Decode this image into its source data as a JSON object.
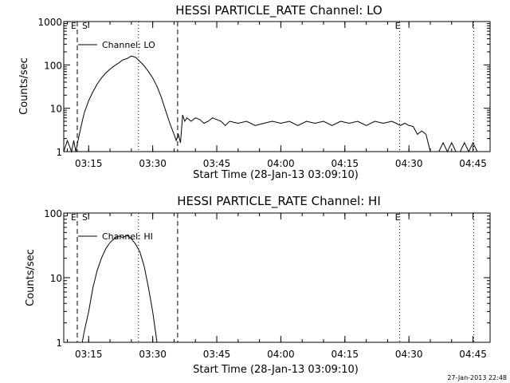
{
  "chart_data": [
    {
      "type": "line",
      "title": "HESSI PARTICLE_RATE Channel: LO",
      "xlabel": "Start Time (28-Jan-13 03:09:10)",
      "ylabel": "Counts/sec",
      "y_scale": "log",
      "ylim": [
        1,
        1000
      ],
      "xlim": [
        "03:09:10",
        "04:49:00"
      ],
      "x_ticks": [
        "03:15",
        "03:30",
        "03:45",
        "04:00",
        "04:15",
        "04:30",
        "04:45"
      ],
      "y_ticks": [
        "1",
        "10",
        "100",
        "1000"
      ],
      "legend": {
        "position": "top-left",
        "entries": [
          "Channel: LO"
        ]
      },
      "markers": [
        {
          "time": "03:12:20",
          "style": "dashed",
          "labels": [
            "E",
            "S"
          ]
        },
        {
          "time": "03:26:40",
          "style": "dotted",
          "labels": []
        },
        {
          "time": "03:35:50",
          "style": "dashed",
          "labels": []
        },
        {
          "time": "04:27:50",
          "style": "dotted",
          "labels": [
            "E"
          ]
        },
        {
          "time": "04:45:10",
          "style": "dotted",
          "labels": []
        }
      ],
      "series": [
        {
          "name": "Channel: LO",
          "x": [
            "03:09:10",
            "03:10:00",
            "03:11:00",
            "03:11:30",
            "03:12:00",
            "03:12:30",
            "03:13:00",
            "03:13:30",
            "03:14:00",
            "03:15:00",
            "03:16:00",
            "03:17:00",
            "03:18:00",
            "03:19:00",
            "03:20:00",
            "03:21:00",
            "03:22:00",
            "03:23:00",
            "03:24:00",
            "03:25:00",
            "03:26:00",
            "03:27:00",
            "03:28:00",
            "03:29:00",
            "03:30:00",
            "03:31:00",
            "03:32:00",
            "03:33:00",
            "03:34:00",
            "03:35:00",
            "03:35:30",
            "03:36:00",
            "03:36:30",
            "03:37:00",
            "03:37:30",
            "03:38:00",
            "03:39:00",
            "03:40:00",
            "03:41:00",
            "03:42:00",
            "03:43:00",
            "03:44:00",
            "03:45:00",
            "03:46:00",
            "03:47:00",
            "03:48:00",
            "03:50:00",
            "03:52:00",
            "03:54:00",
            "03:56:00",
            "03:58:00",
            "04:00:00",
            "04:02:00",
            "04:04:00",
            "04:06:00",
            "04:08:00",
            "04:10:00",
            "04:12:00",
            "04:14:00",
            "04:16:00",
            "04:18:00",
            "04:20:00",
            "04:22:00",
            "04:24:00",
            "04:26:00",
            "04:27:00",
            "04:28:00",
            "04:29:00",
            "04:30:00",
            "04:31:00",
            "04:32:00",
            "04:33:00",
            "04:34:00",
            "04:35:00",
            "04:36:00",
            "04:37:00",
            "04:38:00",
            "04:39:00",
            "04:40:00",
            "04:41:00",
            "04:42:00",
            "04:43:00",
            "04:44:00",
            "04:45:00",
            "04:46:00"
          ],
          "y": [
            1,
            1.8,
            1,
            1.8,
            1,
            1.8,
            3,
            5,
            8,
            15,
            24,
            36,
            50,
            65,
            80,
            95,
            110,
            130,
            140,
            160,
            150,
            120,
            95,
            70,
            50,
            32,
            18,
            9,
            4.5,
            2.5,
            1.8,
            2.5,
            1.6,
            7,
            5,
            6,
            5,
            6,
            5.5,
            4.5,
            5,
            6,
            5.5,
            5,
            4,
            5,
            4.5,
            5,
            4,
            4.5,
            5,
            4.5,
            5,
            4,
            5,
            4.5,
            5,
            4,
            5,
            4.5,
            5,
            4,
            5,
            4.5,
            5,
            4.5,
            4,
            4.5,
            4,
            3.8,
            2.5,
            3,
            2.5,
            1,
            1,
            1,
            1.6,
            1,
            1.6,
            1,
            1,
            1.6,
            1,
            1.6,
            1
          ]
        }
      ]
    },
    {
      "type": "line",
      "title": "HESSI PARTICLE_RATE Channel: HI",
      "xlabel": "Start Time (28-Jan-13 03:09:10)",
      "ylabel": "Counts/sec",
      "y_scale": "log",
      "ylim": [
        1,
        100
      ],
      "xlim": [
        "03:09:10",
        "04:49:00"
      ],
      "x_ticks": [
        "03:15",
        "03:30",
        "03:45",
        "04:00",
        "04:15",
        "04:30",
        "04:45"
      ],
      "y_ticks": [
        "1",
        "10",
        "100"
      ],
      "legend": {
        "position": "top-left",
        "entries": [
          "Channel: HI"
        ]
      },
      "markers": [
        {
          "time": "03:12:20",
          "style": "dashed",
          "labels": [
            "E",
            "S"
          ]
        },
        {
          "time": "03:26:40",
          "style": "dotted",
          "labels": []
        },
        {
          "time": "03:35:50",
          "style": "dashed",
          "labels": []
        },
        {
          "time": "04:27:50",
          "style": "dotted",
          "labels": [
            "E"
          ]
        },
        {
          "time": "04:45:10",
          "style": "dotted",
          "labels": []
        }
      ],
      "series": [
        {
          "name": "Channel: HI",
          "x": [
            "03:13:30",
            "03:14:00",
            "03:15:00",
            "03:16:00",
            "03:17:00",
            "03:18:00",
            "03:19:00",
            "03:20:00",
            "03:21:00",
            "03:22:00",
            "03:23:00",
            "03:24:00",
            "03:25:00",
            "03:26:00",
            "03:27:00",
            "03:28:00",
            "03:29:00",
            "03:30:00",
            "03:31:00"
          ],
          "y": [
            1,
            1.5,
            3,
            7,
            13,
            20,
            28,
            35,
            40,
            44,
            42,
            45,
            40,
            33,
            25,
            15,
            7,
            3,
            1
          ]
        }
      ]
    }
  ],
  "footer": {
    "timestamp": "27-Jan-2013 22:48"
  }
}
